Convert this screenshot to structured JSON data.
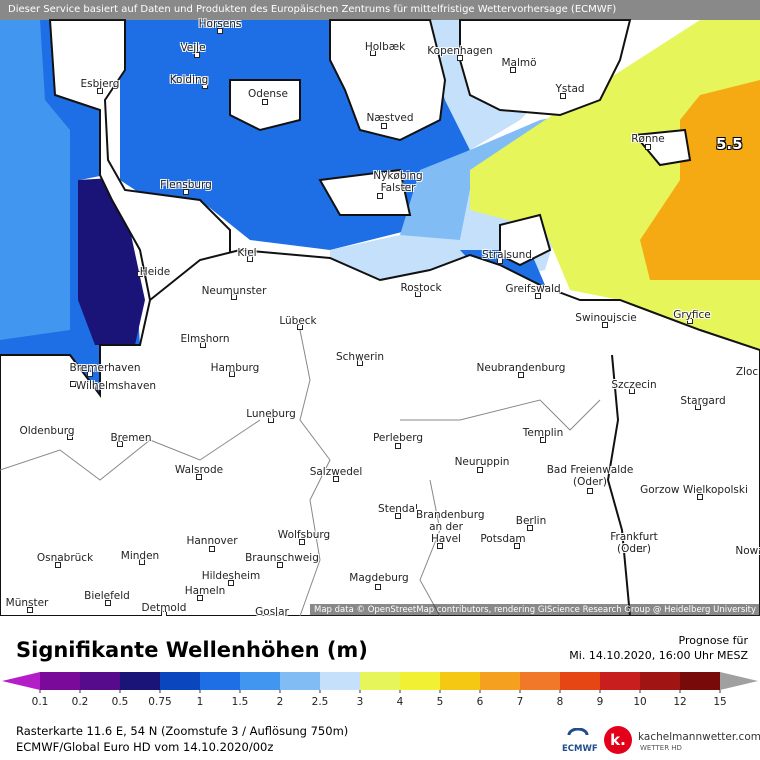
{
  "header": {
    "notice": "Dieser Service basiert auf Daten und Produkten des Europäischen Zentrums für mittelfristige Wettervorhersage (ECMWF)"
  },
  "map": {
    "cities": [
      "Horsens",
      "Vejle",
      "Holbæk",
      "Kopenhagen",
      "Malmö",
      "Esbjerg",
      "Kolding",
      "Odense",
      "Ystad",
      "Næstved",
      "Rønne",
      "Flensburg",
      "Nykøbing Falster",
      "Kiel",
      "Heide",
      "Neumunster",
      "Stralsund",
      "Rostock",
      "Greifswald",
      "Lübeck",
      "Swinoujscie",
      "Gryfice",
      "Elmshorn",
      "Schwerin",
      "Bremerhaven",
      "Hamburg",
      "Neubrandenburg",
      "Wilhelmshaven",
      "Szczecin",
      "Zloc",
      "Stargard",
      "Oldenburg",
      "Luneburg",
      "Perleberg",
      "Templin",
      "Bremen",
      "Walsrode",
      "Salzwedel",
      "Neuruppin",
      "Bad Freienwalde (Oder)",
      "Gorzow Wielkopolski",
      "Stendal",
      "Brandenburg an der Havel",
      "Berlin",
      "Potsdam",
      "Hannover",
      "Wolfsburg",
      "Frankfurt (Oder)",
      "Braunschweig",
      "Osnabrück",
      "Minden",
      "Hildesheim",
      "Magdeburg",
      "Hameln",
      "Bielefeld",
      "Münster",
      "Detmold",
      "Goslar",
      "Nowa"
    ],
    "annotation": "5.5",
    "attribution": "Map data © OpenStreetMap contributors, rendering GIScience Research Group @ Heidelberg University"
  },
  "legend": {
    "title": "Signifikante Wellenhöhen (m)",
    "forecast_label": "Prognose für",
    "forecast_time": "Mi. 14.10.2020, 16:00 Uhr MESZ",
    "ticks": [
      0.1,
      0.2,
      0.5,
      0.75,
      1,
      1.5,
      2,
      2.5,
      3,
      4,
      5,
      6,
      7,
      8,
      9,
      10,
      12,
      15
    ],
    "under_color": "#b41ec8",
    "over_color": "#a0a0a0",
    "colors": [
      "#7a0a9a",
      "#560a8c",
      "#1a1478",
      "#0a46be",
      "#1e6ee6",
      "#4196f0",
      "#82bcf5",
      "#c4e0fa",
      "#e6f55a",
      "#f2f032",
      "#f5c814",
      "#f5a01e",
      "#f07828",
      "#e64614",
      "#c81e1e",
      "#a01414",
      "#780a0a"
    ]
  },
  "footer": {
    "grid_info": "Rasterkarte 11.6 E, 54 N (Zoomstufe 3 / Auflösung 750m)",
    "model_run": "ECMWF/Global Euro HD vom 14.10.2020/00z",
    "ecmwf_logo": "ECMWF",
    "brand_logo": "k.",
    "brand": "kachelmannwetter.com",
    "brand_sub": "WETTER HD"
  }
}
